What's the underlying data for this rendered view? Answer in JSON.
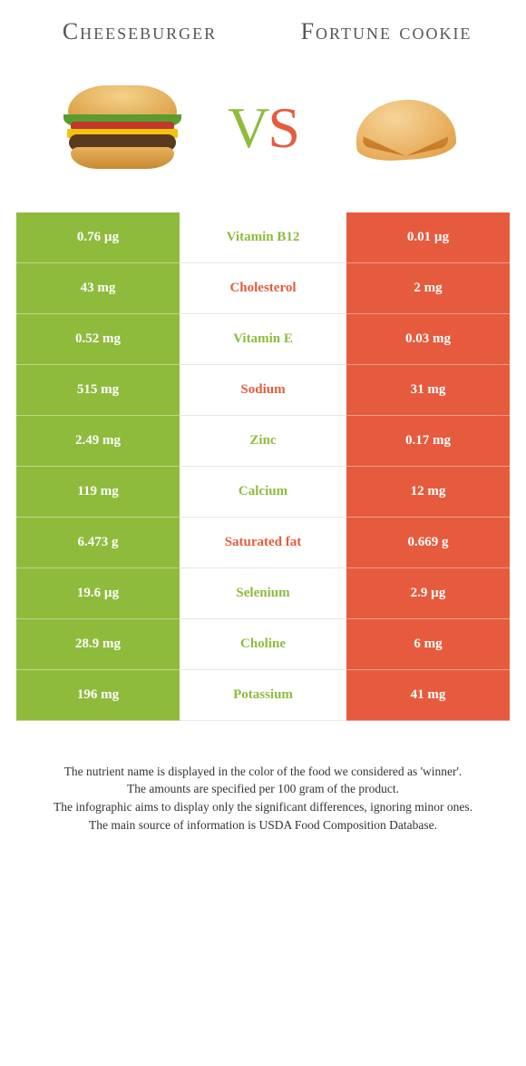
{
  "colors": {
    "left_bg": "#8fbb3d",
    "right_bg": "#e65b3e",
    "mid_green": "#8fbb3d",
    "mid_orange": "#e65b3e",
    "white": "#ffffff"
  },
  "header": {
    "left_title": "Cheeseburger",
    "right_title": "Fortune cookie"
  },
  "vs": {
    "v": "V",
    "s": "S"
  },
  "rows": [
    {
      "left": "0.76 µg",
      "label": "Vitamin B12",
      "right": "0.01 µg",
      "winner": "left"
    },
    {
      "left": "43 mg",
      "label": "Cholesterol",
      "right": "2 mg",
      "winner": "right"
    },
    {
      "left": "0.52 mg",
      "label": "Vitamin E",
      "right": "0.03 mg",
      "winner": "left"
    },
    {
      "left": "515 mg",
      "label": "Sodium",
      "right": "31 mg",
      "winner": "right"
    },
    {
      "left": "2.49 mg",
      "label": "Zinc",
      "right": "0.17 mg",
      "winner": "left"
    },
    {
      "left": "119 mg",
      "label": "Calcium",
      "right": "12 mg",
      "winner": "left"
    },
    {
      "left": "6.473 g",
      "label": "Saturated fat",
      "right": "0.669 g",
      "winner": "right"
    },
    {
      "left": "19.6 µg",
      "label": "Selenium",
      "right": "2.9 µg",
      "winner": "left"
    },
    {
      "left": "28.9 mg",
      "label": "Choline",
      "right": "6 mg",
      "winner": "left"
    },
    {
      "left": "196 mg",
      "label": "Potassium",
      "right": "41 mg",
      "winner": "left"
    }
  ],
  "footnotes": [
    "The nutrient name is displayed in the color of the food we considered as 'winner'.",
    "The amounts are specified per 100 gram of the product.",
    "The infographic aims to display only the significant differences, ignoring minor ones.",
    "The main source of information is USDA Food Composition Database."
  ]
}
